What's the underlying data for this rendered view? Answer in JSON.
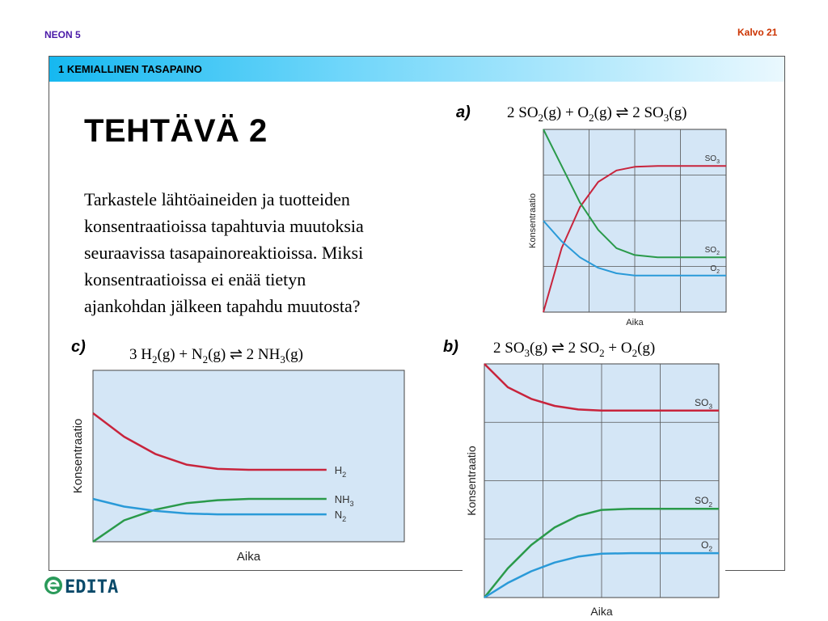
{
  "header": {
    "left": "NEON 5",
    "right": "Kalvo 21"
  },
  "section_bar": "1 KEMIALLINEN TASAPAINO",
  "title": "TEHTÄVÄ 2",
  "body_lines": [
    "Tarkastele lähtöaineiden ja tuotteiden",
    "konsentraatioissa tapahtuvia muutoksia",
    "seuraavissa tasapainoreaktioissa. Miksi",
    "konsentraatioissa ei enää tietyn",
    "ajankohdan jälkeen tapahdu muutosta?"
  ],
  "panels": {
    "a": {
      "tag": "a)",
      "eq": {
        "c1": "2 SO",
        "s1": "2",
        "c2": "(g) + O",
        "s2": "2",
        "c3": "(g) ⇌ 2 SO",
        "s3": "3",
        "c4": "(g)"
      }
    },
    "b": {
      "tag": "b)",
      "eq": {
        "c1": "2 SO",
        "s1": "3",
        "c2": "(g) ⇌ 2 SO",
        "s2": "2",
        "c3": " + O",
        "s3": "2",
        "c4": "(g)"
      }
    },
    "c": {
      "tag": "c)",
      "eq": {
        "c1": "3 H",
        "s1": "2",
        "c2": "(g) + N",
        "s2": "2",
        "c3": "(g) ⇌ 2 NH",
        "s3": "3",
        "c4": "(g)"
      }
    }
  },
  "logo": "EDITA",
  "colors": {
    "red": "#c8243c",
    "green": "#2a9a4a",
    "blue": "#2a9ad8",
    "plot_bg": "#d4e6f6"
  },
  "chart_data": [
    {
      "type": "line",
      "panel": "a",
      "xlabel": "Aika",
      "ylabel": "Konsentraatio",
      "xlim": [
        0,
        4
      ],
      "ylim": [
        0,
        4
      ],
      "grid": true,
      "series": [
        {
          "name": "SO3",
          "color": "#c8243c",
          "x": [
            0,
            0.4,
            0.8,
            1.2,
            1.6,
            2.0,
            2.5,
            4.0
          ],
          "y": [
            0,
            1.4,
            2.3,
            2.85,
            3.1,
            3.18,
            3.2,
            3.2
          ]
        },
        {
          "name": "SO2",
          "color": "#2a9a4a",
          "x": [
            0,
            0.4,
            0.8,
            1.2,
            1.6,
            2.0,
            2.5,
            4.0
          ],
          "y": [
            4.0,
            3.2,
            2.4,
            1.8,
            1.4,
            1.25,
            1.2,
            1.2
          ]
        },
        {
          "name": "O2",
          "color": "#2a9ad8",
          "x": [
            0,
            0.4,
            0.8,
            1.2,
            1.6,
            2.0,
            2.5,
            4.0
          ],
          "y": [
            2.0,
            1.55,
            1.2,
            0.97,
            0.85,
            0.8,
            0.8,
            0.8
          ]
        }
      ]
    },
    {
      "type": "line",
      "panel": "b",
      "xlabel": "Aika",
      "ylabel": "Konsentraatio",
      "xlim": [
        0,
        4
      ],
      "ylim": [
        0,
        4
      ],
      "grid": true,
      "series": [
        {
          "name": "SO3",
          "color": "#c8243c",
          "x": [
            0,
            0.4,
            0.8,
            1.2,
            1.6,
            2.0,
            2.5,
            4.0
          ],
          "y": [
            4.0,
            3.6,
            3.4,
            3.28,
            3.22,
            3.2,
            3.2,
            3.2
          ]
        },
        {
          "name": "SO2",
          "color": "#2a9a4a",
          "x": [
            0,
            0.4,
            0.8,
            1.2,
            1.6,
            2.0,
            2.5,
            4.0
          ],
          "y": [
            0,
            0.5,
            0.9,
            1.2,
            1.4,
            1.5,
            1.52,
            1.52
          ]
        },
        {
          "name": "O2",
          "color": "#2a9ad8",
          "x": [
            0,
            0.4,
            0.8,
            1.2,
            1.6,
            2.0,
            2.5,
            4.0
          ],
          "y": [
            0,
            0.25,
            0.45,
            0.6,
            0.7,
            0.75,
            0.76,
            0.76
          ]
        }
      ]
    },
    {
      "type": "line",
      "panel": "c",
      "xlabel": "Aika",
      "ylabel": "Konsentraatio",
      "xlim": [
        0,
        4
      ],
      "ylim": [
        0,
        4
      ],
      "grid": false,
      "series": [
        {
          "name": "H2",
          "color": "#c8243c",
          "x": [
            0,
            0.4,
            0.8,
            1.2,
            1.6,
            2.0,
            2.5,
            3.0
          ],
          "y": [
            3.0,
            2.45,
            2.05,
            1.8,
            1.7,
            1.68,
            1.68,
            1.68
          ]
        },
        {
          "name": "NH3",
          "color": "#2a9a4a",
          "x": [
            0,
            0.4,
            0.8,
            1.2,
            1.6,
            2.0,
            2.5,
            3.0
          ],
          "y": [
            0,
            0.5,
            0.75,
            0.9,
            0.97,
            1.0,
            1.0,
            1.0
          ]
        },
        {
          "name": "N2",
          "color": "#2a9ad8",
          "x": [
            0,
            0.4,
            0.8,
            1.2,
            1.6,
            2.0,
            2.5,
            3.0
          ],
          "y": [
            1.0,
            0.82,
            0.72,
            0.66,
            0.64,
            0.64,
            0.64,
            0.64
          ]
        }
      ]
    }
  ]
}
